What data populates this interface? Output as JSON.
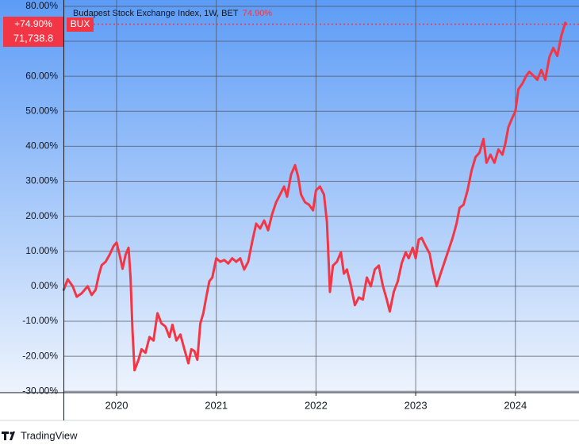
{
  "chart_data": {
    "type": "line",
    "header": "Budapest Stock Exchange Index, 1W, BET",
    "header_change": "74.90%",
    "badge_change": "+74.90%",
    "badge_price": "71,738.8",
    "symbol": "BUX",
    "brand": "TradingView",
    "color": "#f23645",
    "x": [
      2019.47,
      2019.51,
      2019.56,
      2019.6,
      2019.65,
      2019.71,
      2019.75,
      2019.79,
      2019.82,
      2019.85,
      2019.89,
      2019.93,
      2019.97,
      2020.0,
      2020.03,
      2020.06,
      2020.09,
      2020.12,
      2020.14,
      2020.16,
      2020.18,
      2020.22,
      2020.25,
      2020.29,
      2020.33,
      2020.37,
      2020.41,
      2020.45,
      2020.49,
      2020.53,
      2020.56,
      2020.6,
      2020.64,
      2020.68,
      2020.72,
      2020.75,
      2020.78,
      2020.81,
      2020.84,
      2020.87,
      2020.9,
      2020.93,
      2020.96,
      2021.0,
      2021.04,
      2021.08,
      2021.12,
      2021.16,
      2021.2,
      2021.24,
      2021.28,
      2021.32,
      2021.36,
      2021.4,
      2021.44,
      2021.48,
      2021.52,
      2021.56,
      2021.6,
      2021.64,
      2021.68,
      2021.71,
      2021.75,
      2021.79,
      2021.82,
      2021.85,
      2021.89,
      2021.93,
      2021.97,
      2022.0,
      2022.04,
      2022.08,
      2022.11,
      2022.14,
      2022.17,
      2022.21,
      2022.25,
      2022.28,
      2022.31,
      2022.35,
      2022.39,
      2022.43,
      2022.47,
      2022.51,
      2022.55,
      2022.59,
      2022.63,
      2022.67,
      2022.71,
      2022.74,
      2022.78,
      2022.82,
      2022.86,
      2022.9,
      2022.93,
      2022.97,
      2023.0,
      2023.03,
      2023.06,
      2023.1,
      2023.14,
      2023.17,
      2023.21,
      2023.25,
      2023.29,
      2023.33,
      2023.37,
      2023.41,
      2023.44,
      2023.48,
      2023.52,
      2023.56,
      2023.6,
      2023.64,
      2023.68,
      2023.71,
      2023.75,
      2023.79,
      2023.83,
      2023.87,
      2023.9,
      2023.93,
      2023.97,
      2024.0,
      2024.03,
      2024.07,
      2024.11,
      2024.14,
      2024.18,
      2024.22,
      2024.26,
      2024.3,
      2024.34,
      2024.38,
      2024.42,
      2024.46,
      2024.5,
      2024.51
    ],
    "values": [
      -1,
      2,
      0,
      -3,
      -2,
      0,
      -2.5,
      -1,
      3,
      6,
      7,
      9,
      11.5,
      12.5,
      9,
      5,
      9,
      11,
      2.5,
      -13,
      -24,
      -21,
      -18,
      -19,
      -14.5,
      -15.5,
      -7.7,
      -10.6,
      -11.5,
      -14.5,
      -11,
      -15.5,
      -13.8,
      -18,
      -22,
      -18,
      -18.5,
      -21,
      -10.6,
      -7.7,
      -3,
      1.4,
      2.5,
      8,
      7,
      7.5,
      6.5,
      8,
      7,
      8,
      4.8,
      7,
      12.7,
      17.9,
      16.5,
      18.8,
      16,
      20.6,
      24,
      26.2,
      28.5,
      25.6,
      31.9,
      34.6,
      31.4,
      26.2,
      24,
      23.3,
      21.7,
      27.4,
      28.5,
      26.2,
      18.3,
      -1.6,
      5.9,
      7,
      9.7,
      3.6,
      4.8,
      0.2,
      -5.4,
      -3.2,
      -3.8,
      2.5,
      0,
      4.8,
      5.9,
      0.2,
      -3.8,
      -7.2,
      -1.6,
      1.4,
      6.6,
      9.7,
      8,
      11,
      8,
      13.3,
      13.8,
      11.5,
      9.3,
      4.8,
      0,
      3.6,
      7,
      10.4,
      13.8,
      17.9,
      22.4,
      23.3,
      27.4,
      33,
      36.9,
      38.2,
      42.1,
      35.3,
      37.6,
      35.3,
      39.1,
      37.6,
      40.9,
      45.5,
      48.2,
      50,
      56.3,
      57.9,
      60.2,
      61.3,
      60.2,
      59,
      61.8,
      59,
      65.4,
      68.1,
      65.8,
      71.5,
      75.3,
      74.9
    ],
    "xlim": [
      2019.467,
      2024.638
    ],
    "xticks": [
      2020,
      2021,
      2022,
      2023,
      2024
    ],
    "ylim": [
      -30.4,
      81.8
    ],
    "yticks": [
      {
        "value": 80,
        "label": "80.00%"
      },
      {
        "value": 70,
        "label": "70.00%"
      },
      {
        "value": 60,
        "label": "60.00%"
      },
      {
        "value": 50,
        "label": "50.00%"
      },
      {
        "value": 40,
        "label": "40.00%"
      },
      {
        "value": 30,
        "label": "30.00%"
      },
      {
        "value": 20,
        "label": "20.00%"
      },
      {
        "value": 10,
        "label": "10.00%"
      },
      {
        "value": 0,
        "label": "0.00%"
      },
      {
        "value": -10,
        "label": "-10.00%"
      },
      {
        "value": -20,
        "label": "-20.00%"
      },
      {
        "value": -30,
        "label": "-30.00%"
      }
    ],
    "grid": true
  }
}
